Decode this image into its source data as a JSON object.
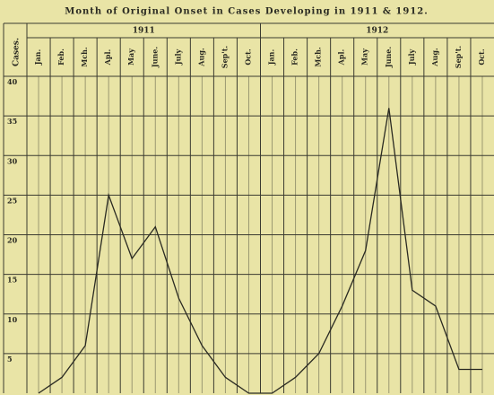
{
  "chart_data": {
    "type": "line",
    "title": "Month of Original Onset in Cases Developing in 1911 & 1912.",
    "y_label": "Cases.",
    "groups": [
      "1911",
      "1912"
    ],
    "categories": [
      "Jan.",
      "Feb.",
      "Mch.",
      "Apl.",
      "May",
      "June.",
      "July",
      "Aug.",
      "Sep't.",
      "Oct.",
      "Jan.",
      "Feb.",
      "Mch.",
      "Apl.",
      "May",
      "June.",
      "July",
      "Aug.",
      "Sep't.",
      "Oct."
    ],
    "values": [
      0,
      2,
      6,
      25,
      17,
      21,
      12,
      6,
      2,
      0,
      0,
      2,
      5,
      11,
      18,
      36,
      13,
      11,
      3,
      3
    ],
    "color": "#2a2a22",
    "ylim": [
      0,
      40
    ],
    "yticks": [
      5,
      10,
      15,
      20,
      25,
      30,
      35,
      40
    ],
    "grid": true
  }
}
